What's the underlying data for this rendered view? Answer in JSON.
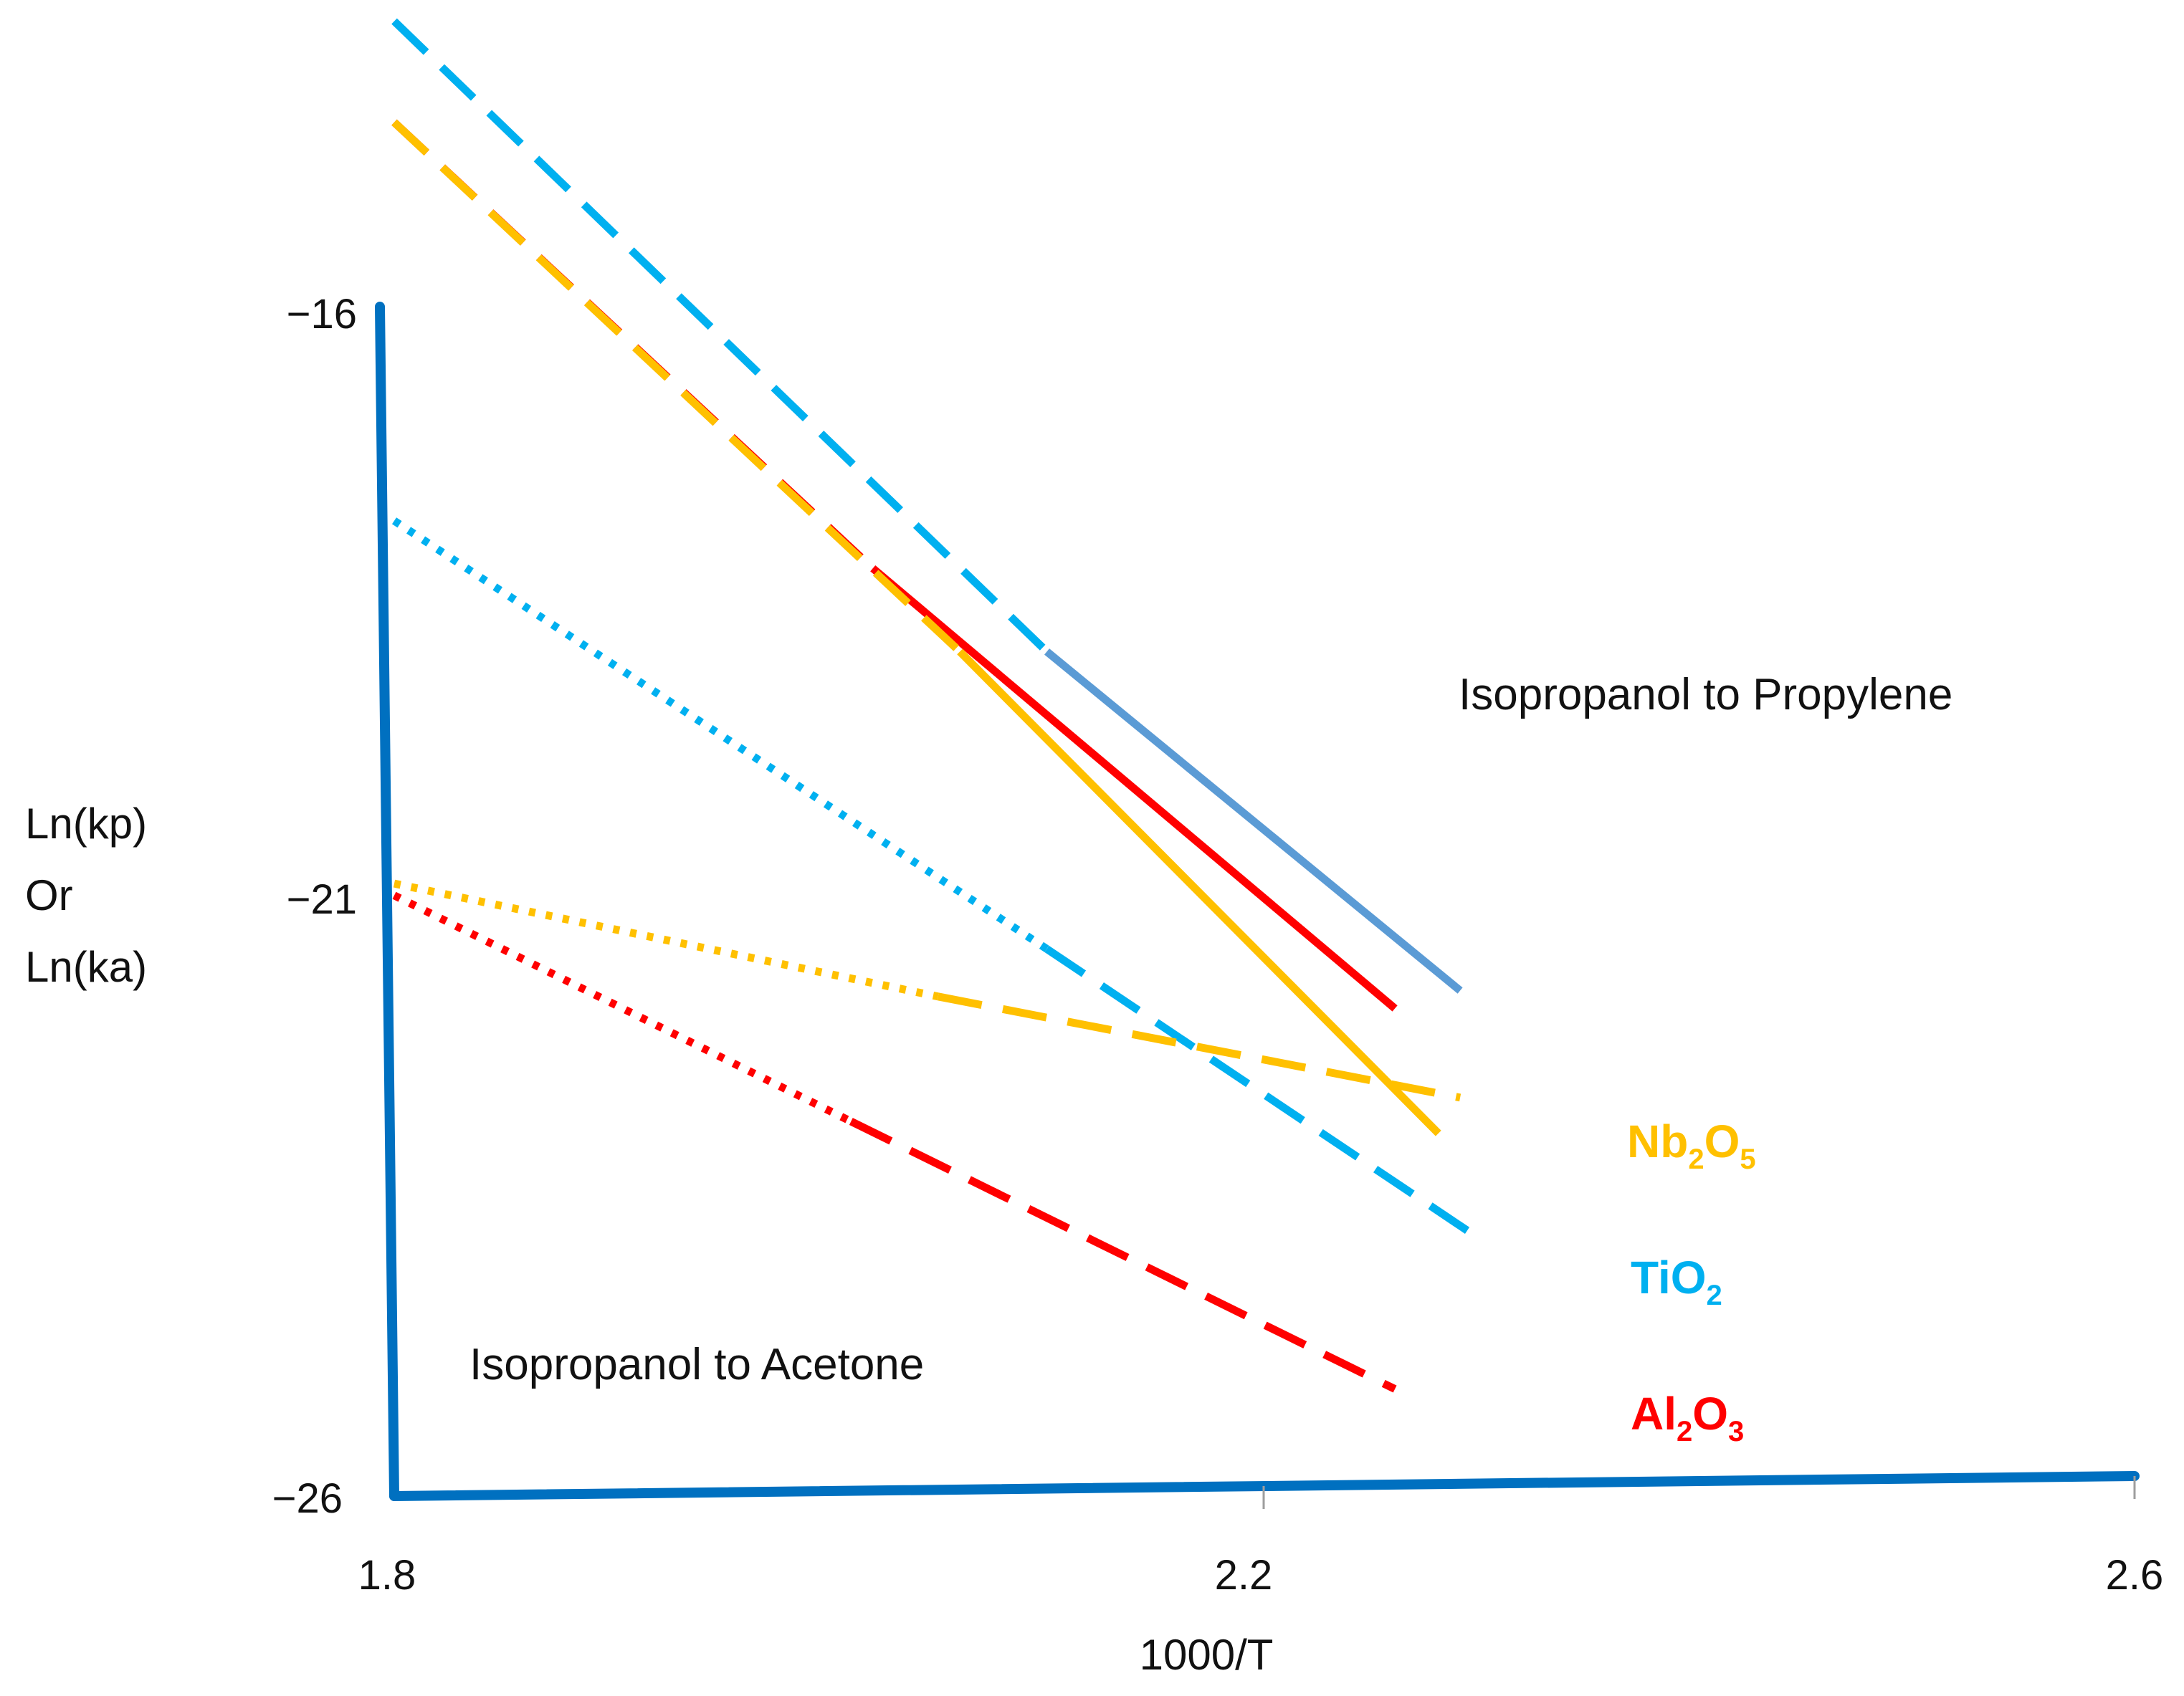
{
  "chart_data": {
    "type": "line",
    "title": "",
    "xlabel": "1000/T",
    "ylabel_lines": [
      "Ln(kp)",
      "Or",
      "Ln(ka)"
    ],
    "xlim": [
      1.8,
      2.6
    ],
    "ylim": [
      -26,
      -16
    ],
    "xticks": [
      "1.8",
      "2.2",
      "2.6"
    ],
    "yticks": [
      "−16",
      "−21",
      "−26"
    ],
    "xtick_values": [
      1.8,
      2.2,
      2.6
    ],
    "ytick_values": [
      -16,
      -21,
      -26
    ],
    "annotations": {
      "propylene": "Isopropanol to Propylene",
      "acetone": "Isopropanol to Acetone"
    },
    "legend": [
      {
        "base": "Nb",
        "sub1": "2",
        "mid": "O",
        "sub2": "5",
        "color": "#ffc000"
      },
      {
        "base": "Ti",
        "sub1": "",
        "mid": "O",
        "sub2": "2",
        "color": "#00b0f0"
      },
      {
        "base": "Al",
        "sub1": "2",
        "mid": "O",
        "sub2": "3",
        "color": "#ff0000"
      }
    ],
    "axis_color": "#0070c0",
    "series": [
      {
        "name": "TiO2 propylene",
        "reaction": "propylene",
        "color": "#00b0f0",
        "segments": [
          {
            "style": "dashed",
            "x": [
              1.8,
              2.1
            ],
            "y": [
              -13.6,
              -18.9
            ]
          },
          {
            "style": "solid",
            "color": "#5b9bd5",
            "x": [
              2.1,
              2.29
            ],
            "y": [
              -18.9,
              -21.75
            ]
          }
        ]
      },
      {
        "name": "Al2O3 propylene",
        "reaction": "propylene",
        "color": "#ff0000",
        "segments": [
          {
            "style": "dashed",
            "x": [
              1.8,
              2.02
            ],
            "y": [
              -14.45,
              -18.2
            ]
          },
          {
            "style": "solid",
            "x": [
              2.02,
              2.26
            ],
            "y": [
              -18.2,
              -21.9
            ]
          }
        ]
      },
      {
        "name": "Nb2O5 propylene",
        "reaction": "propylene",
        "color": "#ffc000",
        "segments": [
          {
            "style": "dashed",
            "x": [
              1.8,
              2.06
            ],
            "y": [
              -14.45,
              -18.9
            ]
          },
          {
            "style": "solid",
            "x": [
              2.06,
              2.28
            ],
            "y": [
              -18.9,
              -22.95
            ]
          }
        ]
      },
      {
        "name": "TiO2 acetone",
        "reaction": "acetone",
        "color": "#00b0f0",
        "segments": [
          {
            "style": "dotted",
            "x": [
              1.8,
              2.1
            ],
            "y": [
              -17.8,
              -21.4
            ]
          },
          {
            "style": "dashed",
            "x": [
              2.1,
              2.3
            ],
            "y": [
              -21.4,
              -23.85
            ]
          }
        ]
      },
      {
        "name": "Nb2O5 acetone",
        "reaction": "acetone",
        "color": "#ffc000",
        "segments": [
          {
            "style": "dotted",
            "x": [
              1.8,
              2.05
            ],
            "y": [
              -20.85,
              -21.8
            ]
          },
          {
            "style": "dashed",
            "x": [
              2.05,
              2.29
            ],
            "y": [
              -21.8,
              -22.65
            ]
          }
        ]
      },
      {
        "name": "Al2O3 acetone",
        "reaction": "acetone",
        "color": "#ff0000",
        "segments": [
          {
            "style": "dotted",
            "x": [
              1.8,
              2.01
            ],
            "y": [
              -20.95,
              -22.85
            ]
          },
          {
            "style": "dashed",
            "x": [
              2.01,
              2.26
            ],
            "y": [
              -22.85,
              -25.1
            ]
          }
        ]
      }
    ]
  }
}
